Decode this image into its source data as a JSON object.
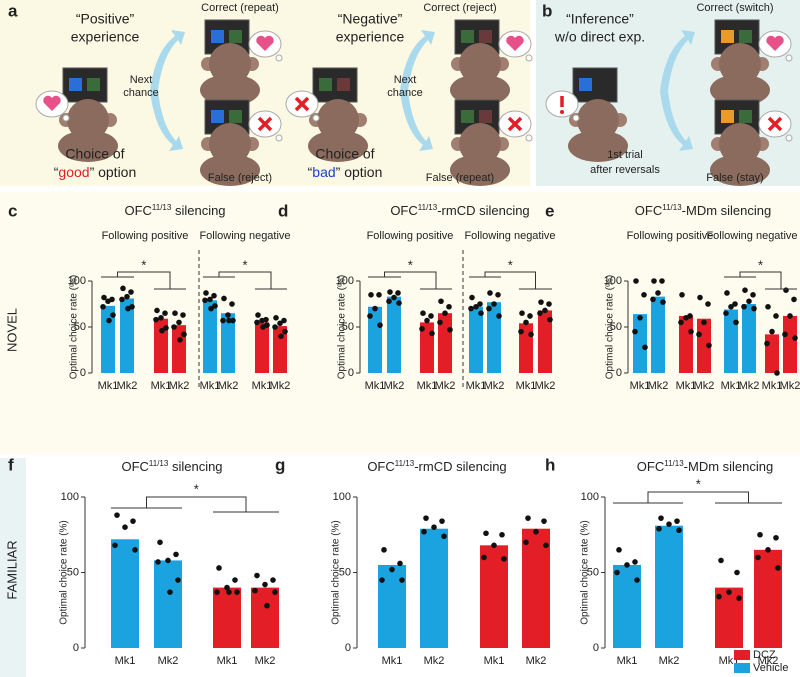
{
  "diagram": {
    "a": {
      "label": "a",
      "scenes": [
        {
          "heading": [
            "“Positive”",
            "experience"
          ],
          "correct": "Correct (repeat)",
          "next": [
            "Next",
            "chance"
          ],
          "choice": [
            "Choice of",
            "“",
            "good",
            "” option"
          ],
          "false": "False (reject)"
        },
        {
          "heading": [
            "“Negative”",
            "experience"
          ],
          "correct": "Correct (reject)",
          "next": [
            "Next",
            "chance"
          ],
          "choice": [
            "Choice of",
            "“",
            "bad",
            "” option"
          ],
          "false": "False (repeat)"
        }
      ]
    },
    "b": {
      "label": "b",
      "heading": [
        "“Inference”",
        "w/o direct exp."
      ],
      "correct": "Correct (switch)",
      "caption": [
        "1st trial",
        "after reversals"
      ],
      "false": "False (stay)"
    }
  },
  "rows": [
    "NOVEL",
    "FAMILIAR"
  ],
  "legend": [
    {
      "name": "DCZ",
      "color": "#e41e26"
    },
    {
      "name": "Vehicle",
      "color": "#1ba3e0"
    }
  ],
  "chart_data": [
    {
      "type": "bar",
      "panel": "c",
      "title": [
        "OFC",
        "11/13",
        " silencing"
      ],
      "subtitles": [
        "Following positive",
        "Following negative"
      ],
      "ylabel": "Optimal choice rate (%)",
      "ylim": [
        0,
        100
      ],
      "yticks": [
        0,
        50,
        100
      ],
      "categories": [
        "Mk1",
        "Mk2",
        "Mk1",
        "Mk2",
        "Mk1",
        "Mk2",
        "Mk1",
        "Mk2"
      ],
      "series": [
        {
          "color": "#1ba3e0",
          "values": [
            73,
            81,
            null,
            null,
            79,
            65,
            null,
            null
          ],
          "points": [
            [
              82,
              80,
              78,
              72,
              63,
              57
            ],
            [
              92,
              88,
              83,
              80,
              72,
              70
            ],
            null,
            null,
            [
              87,
              84,
              80,
              79,
              73,
              70
            ],
            [
              81,
              75,
              63,
              57,
              57,
              57
            ],
            null,
            null
          ]
        },
        {
          "color": "#e41e26",
          "values": [
            null,
            null,
            59,
            52,
            null,
            null,
            55,
            51
          ],
          "points": [
            null,
            null,
            [
              68,
              65,
              60,
              58,
              49,
              46
            ],
            [
              65,
              63,
              55,
              50,
              42,
              36
            ],
            null,
            null,
            [
              63,
              58,
              57,
              55,
              52,
              50
            ],
            [
              60,
              57,
              54,
              50,
              45,
              40
            ]
          ]
        }
      ],
      "significance": [
        "*",
        "*"
      ]
    },
    {
      "type": "bar",
      "panel": "d",
      "title": [
        "OFC",
        "11/13",
        "-rmCD silencing"
      ],
      "subtitles": [
        "Following positive",
        "Following negative"
      ],
      "ylabel": "Optimal choice rate (%)",
      "ylim": [
        0,
        100
      ],
      "yticks": [
        0,
        50,
        100
      ],
      "categories": [
        "Mk1",
        "Mk2",
        "Mk1",
        "Mk2",
        "Mk1",
        "Mk2",
        "Mk1",
        "Mk2"
      ],
      "series": [
        {
          "color": "#1ba3e0",
          "values": [
            72,
            83,
            null,
            null,
            72,
            77,
            null,
            null
          ],
          "points": [
            [
              85,
              85,
              70,
              62,
              52
            ],
            [
              88,
              87,
              82,
              78,
              76
            ],
            null,
            null,
            [
              82,
              75,
              72,
              70,
              65
            ],
            [
              87,
              85,
              75,
              70,
              62
            ],
            null,
            null
          ]
        },
        {
          "color": "#e41e26",
          "values": [
            null,
            null,
            55,
            65,
            null,
            null,
            54,
            68
          ],
          "points": [
            null,
            null,
            [
              65,
              62,
              57,
              48,
              43
            ],
            [
              78,
              72,
              65,
              55,
              47
            ],
            null,
            null,
            [
              65,
              62,
              55,
              45,
              42
            ],
            [
              77,
              75,
              68,
              65,
              58
            ]
          ]
        }
      ],
      "significance": [
        "*",
        "*"
      ]
    },
    {
      "type": "bar",
      "panel": "e",
      "title": [
        "OFC",
        "11/13",
        "-MDm silencing"
      ],
      "subtitles": [
        "Following positive",
        "Following negative"
      ],
      "ylabel": "Optimal choice rate (%)",
      "ylim": [
        0,
        100
      ],
      "yticks": [
        0,
        50,
        100
      ],
      "categories": [
        "Mk1",
        "Mk2",
        "Mk1",
        "Mk2",
        "Mk1",
        "Mk2",
        "Mk1",
        "Mk2"
      ],
      "series": [
        {
          "color": "#1ba3e0",
          "values": [
            64,
            83,
            null,
            null,
            69,
            75,
            null,
            null
          ],
          "points": [
            [
              100,
              85,
              60,
              45,
              28
            ],
            [
              100,
              100,
              87,
              80,
              77
            ],
            null,
            null,
            [
              87,
              75,
              72,
              65,
              55
            ],
            [
              90,
              85,
              78,
              72,
              70
            ],
            null,
            null
          ]
        },
        {
          "color": "#e41e26",
          "values": [
            null,
            null,
            62,
            59,
            null,
            null,
            42,
            62
          ],
          "points": [
            null,
            null,
            [
              85,
              62,
              60,
              55,
              45
            ],
            [
              82,
              75,
              55,
              42,
              30
            ],
            null,
            null,
            [
              72,
              62,
              45,
              32,
              0
            ],
            [
              90,
              80,
              62,
              42,
              38
            ]
          ]
        }
      ],
      "significance": [
        null,
        "*"
      ]
    },
    {
      "type": "bar",
      "panel": "f",
      "title": [
        "OFC",
        "11/13",
        " silencing"
      ],
      "ylabel": "Optimal choice rate (%)",
      "ylim": [
        0,
        100
      ],
      "yticks": [
        0,
        50,
        100
      ],
      "categories": [
        "Mk1",
        "Mk2",
        "Mk1",
        "Mk2"
      ],
      "series": [
        {
          "color": "#1ba3e0",
          "values": [
            72,
            58,
            null,
            null
          ],
          "points": [
            [
              88,
              84,
              80,
              68,
              65
            ],
            [
              70,
              62,
              58,
              57,
              45,
              37
            ],
            null,
            null
          ]
        },
        {
          "color": "#e41e26",
          "values": [
            null,
            null,
            40,
            40
          ],
          "points": [
            null,
            null,
            [
              53,
              45,
              40,
              37,
              37,
              37
            ],
            [
              48,
              45,
              42,
              38,
              37,
              28
            ]
          ]
        }
      ],
      "significance": [
        "*"
      ]
    },
    {
      "type": "bar",
      "panel": "g",
      "title": [
        "OFC",
        "11/13",
        "-rmCD silencing"
      ],
      "ylabel": "Optimal choice rate (%)",
      "ylim": [
        0,
        100
      ],
      "yticks": [
        0,
        50,
        100
      ],
      "categories": [
        "Mk1",
        "Mk2",
        "Mk1",
        "Mk2"
      ],
      "series": [
        {
          "color": "#1ba3e0",
          "values": [
            55,
            79,
            null,
            null
          ],
          "points": [
            [
              65,
              56,
              52,
              45,
              45
            ],
            [
              86,
              84,
              80,
              77,
              74
            ],
            null,
            null
          ]
        },
        {
          "color": "#e41e26",
          "values": [
            null,
            null,
            68,
            79
          ],
          "points": [
            null,
            null,
            [
              76,
              75,
              68,
              60,
              59
            ],
            [
              86,
              84,
              77,
              70,
              68
            ]
          ]
        }
      ]
    },
    {
      "type": "bar",
      "panel": "h",
      "title": [
        "OFC",
        "11/13",
        "-MDm silencing"
      ],
      "ylabel": "Optimal choice rate (%)",
      "ylim": [
        0,
        100
      ],
      "yticks": [
        0,
        50,
        100
      ],
      "categories": [
        "Mk1",
        "Mk2",
        "Mk1",
        "Mk2"
      ],
      "series": [
        {
          "color": "#1ba3e0",
          "values": [
            55,
            81,
            null,
            null
          ],
          "points": [
            [
              65,
              57,
              55,
              50,
              45
            ],
            [
              86,
              84,
              82,
              79,
              78
            ],
            null,
            null
          ]
        },
        {
          "color": "#e41e26",
          "values": [
            null,
            null,
            40,
            65
          ],
          "points": [
            null,
            null,
            [
              58,
              50,
              37,
              34,
              33
            ],
            [
              75,
              73,
              65,
              60,
              53
            ]
          ]
        }
      ],
      "significance": [
        "*"
      ]
    }
  ]
}
